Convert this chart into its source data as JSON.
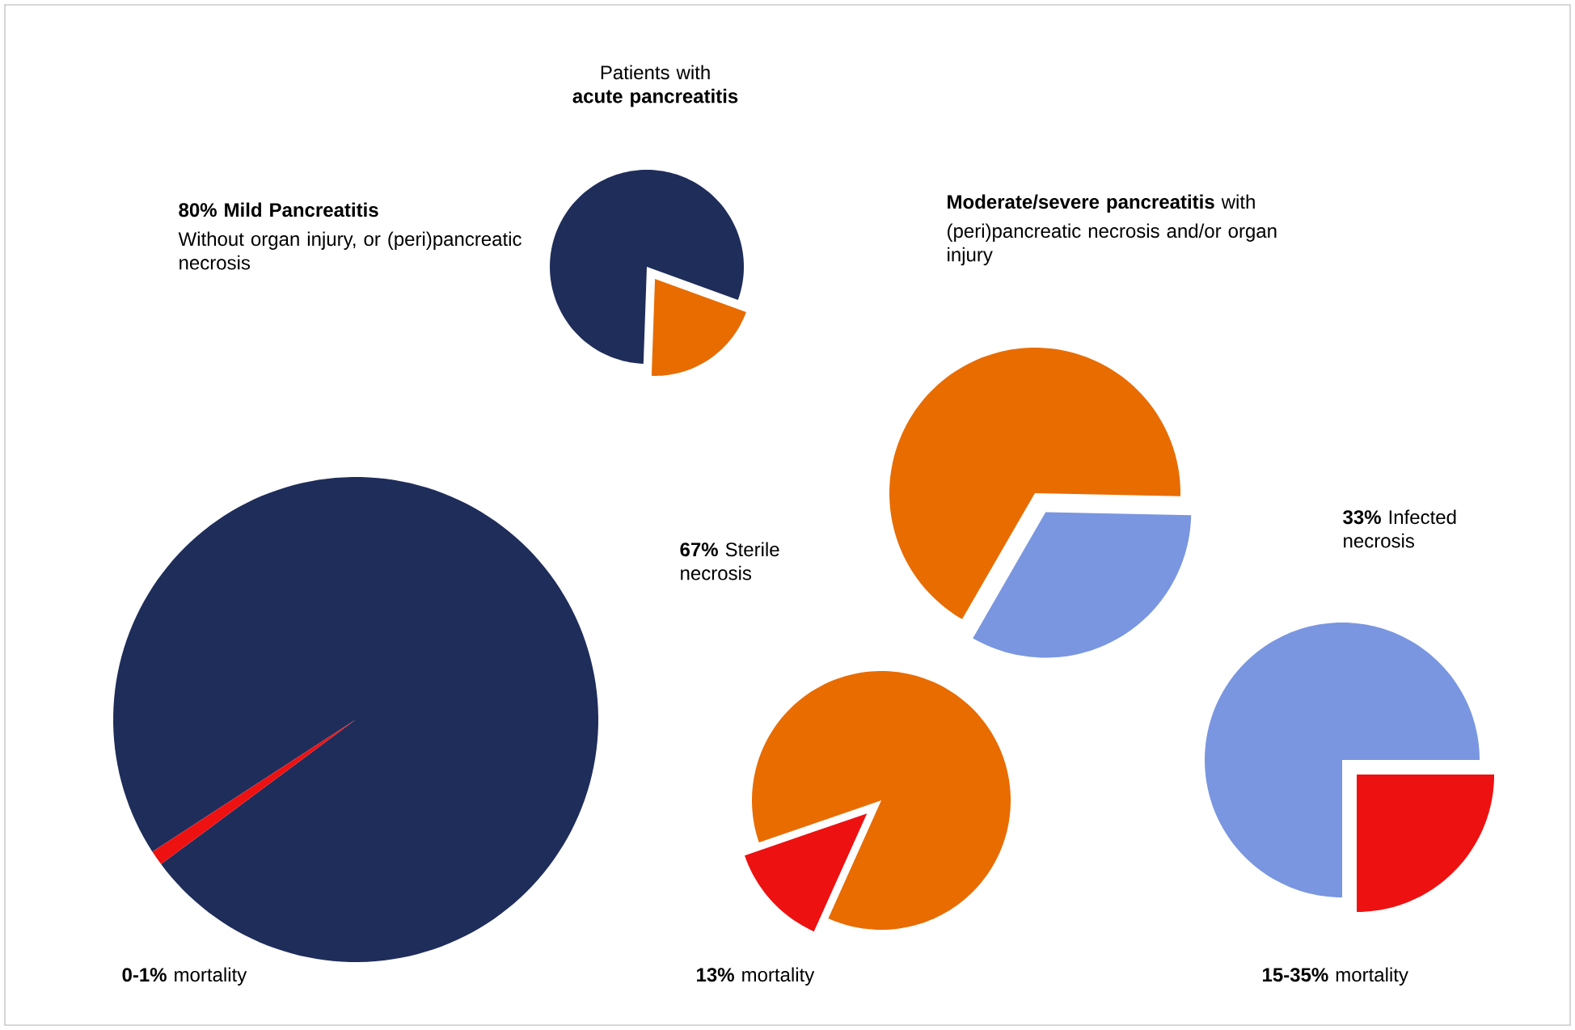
{
  "chart_data": [
    {
      "type": "pie",
      "title": "Patients with **acute pancreatitis**",
      "categories": [
        null,
        null
      ],
      "values": [
        80,
        20
      ],
      "colors": [
        "#1f2d5a",
        "#e86c00"
      ]
    },
    {
      "type": "pie",
      "title": "80% Mild Pancreatitis",
      "subtitle": "Without organ injury, or (peri)pancreatic necrosis",
      "categories": [
        null,
        null
      ],
      "values": [
        99,
        1
      ],
      "colors": [
        "#1f2d5a",
        "#ee1111"
      ],
      "annotations": [
        "**0-1%** mortality"
      ]
    },
    {
      "type": "pie",
      "title": "**Moderate/severe pancreatitis** with",
      "subtitle": "(peri)pancreatic necrosis and/or organ injury",
      "categories": [
        null,
        null
      ],
      "values": [
        67,
        33
      ],
      "colors": [
        "#e86c00",
        "#7a96e0"
      ],
      "annotations": [
        "**67%** Sterile necrosis",
        "**33%** Infected necrosis"
      ]
    },
    {
      "type": "pie",
      "categories": [
        null,
        null
      ],
      "values": [
        87,
        13
      ],
      "colors": [
        "#e86c00",
        "#ee1111"
      ],
      "annotations": [
        "**13%** mortality"
      ]
    },
    {
      "type": "pie",
      "categories": [
        null,
        null
      ],
      "values": [
        75,
        25
      ],
      "colors": [
        "#7a96e0",
        "#ee1111"
      ],
      "annotations": [
        "**15-35%** mortality"
      ]
    }
  ]
}
